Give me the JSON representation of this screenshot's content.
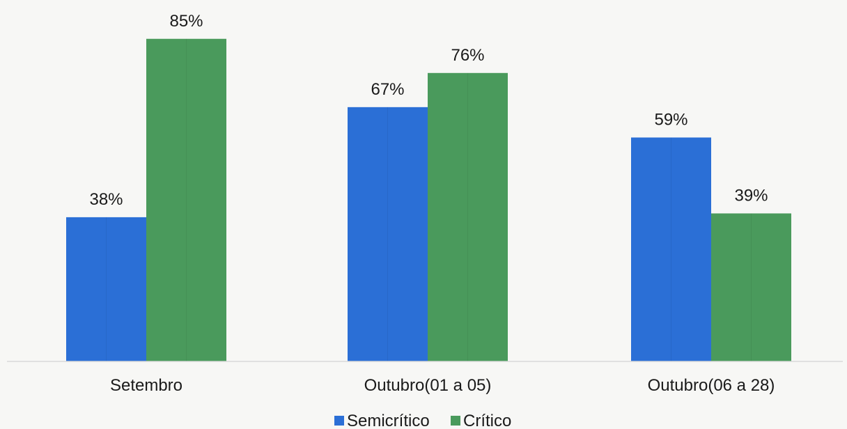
{
  "chart_data": {
    "type": "bar",
    "categories": [
      "Setembro",
      "Outubro(01 a 05)",
      "Outubro(06 a 28)"
    ],
    "series": [
      {
        "name": "Semicrítico",
        "color": "#2b6fd6",
        "values": [
          38,
          67,
          59
        ],
        "labels": [
          "38%",
          "67%",
          "59%"
        ]
      },
      {
        "name": "Crítico",
        "color": "#4a9a5c",
        "values": [
          85,
          76,
          39
        ],
        "labels": [
          "85%",
          "76%",
          "39%"
        ]
      }
    ],
    "ylim": [
      0,
      100
    ],
    "grid": false,
    "legend": "bottom",
    "unit": "%"
  }
}
